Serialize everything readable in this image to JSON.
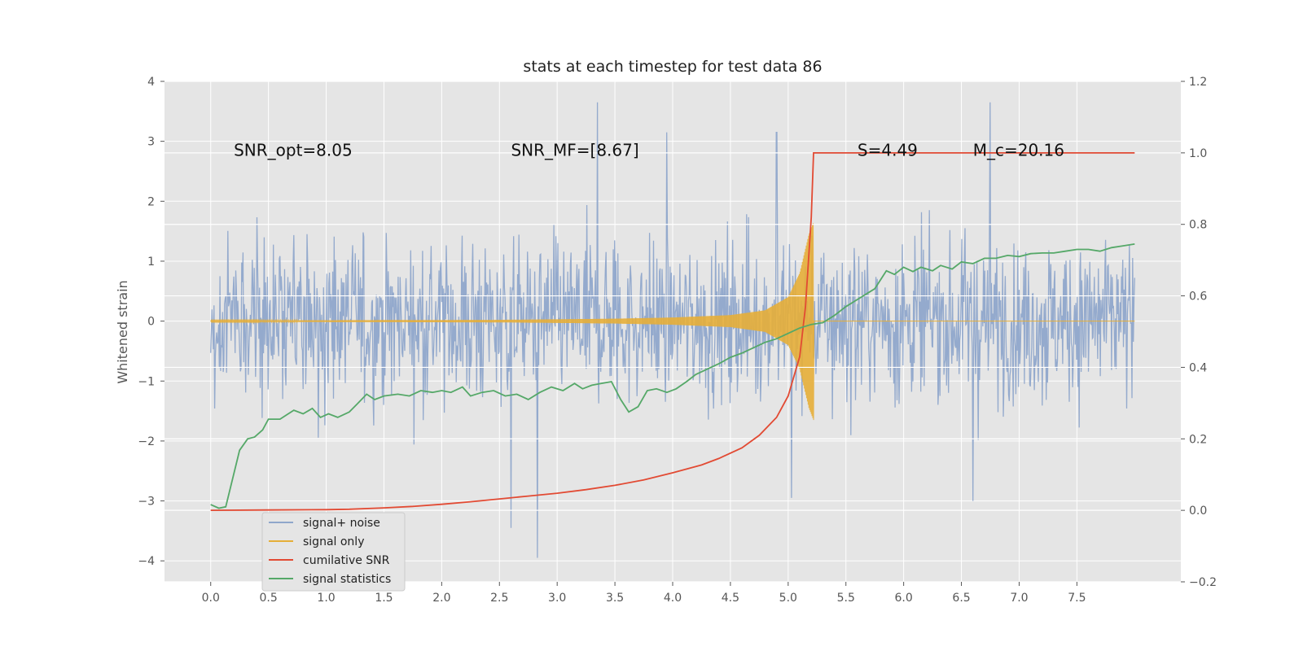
{
  "chart_data": {
    "type": "line",
    "title": "stats at each timestep for test data 86",
    "ylabel": "Whitened strain",
    "xlabel": "",
    "ylabel_right": "",
    "xlim": [
      -0.4,
      8.4
    ],
    "ylim": [
      -4.35,
      4.0
    ],
    "ylim_right": [
      -0.2,
      1.2
    ],
    "x_ticks": [
      "0.0",
      "0.5",
      "1.0",
      "1.5",
      "2.0",
      "2.5",
      "3.0",
      "3.5",
      "4.0",
      "4.5",
      "5.0",
      "5.5",
      "6.0",
      "6.5",
      "7.0",
      "7.5"
    ],
    "y_ticks": [
      "4",
      "3",
      "2",
      "1",
      "0",
      "−1",
      "−2",
      "−3",
      "−4"
    ],
    "y_ticks_right": [
      "1.2",
      "1.0",
      "0.8",
      "0.6",
      "0.4",
      "0.2",
      "0.0",
      "−0.2"
    ],
    "grid": true,
    "legend_position": "bottom-left",
    "annotations": [
      {
        "id": "snr-opt",
        "text": "SNR_opt=8.05",
        "x": 0.2,
        "y": 2.85
      },
      {
        "id": "snr-mf",
        "text": "SNR_MF=[8.67]",
        "x": 2.6,
        "y": 2.85
      },
      {
        "id": "s-stat",
        "text": "S=4.49",
        "x": 5.6,
        "y": 2.85
      },
      {
        "id": "mc",
        "text": "M_c=20.16",
        "x": 6.6,
        "y": 2.85
      }
    ],
    "series": [
      {
        "name": "signal+ noise",
        "axis": "left",
        "color": "#8fa6cb",
        "style": "noise",
        "x_range": [
          0.0,
          8.0
        ],
        "envelope": [
          -2.3,
          2.2
        ],
        "notable_spikes": [
          {
            "x": 3.35,
            "y": 3.65
          },
          {
            "x": 6.75,
            "y": 3.65
          },
          {
            "x": 3.95,
            "y": 3.15
          },
          {
            "x": 4.9,
            "y": 3.15
          },
          {
            "x": 2.6,
            "y": -3.45
          },
          {
            "x": 2.83,
            "y": -3.95
          },
          {
            "x": 5.03,
            "y": -2.95
          },
          {
            "x": 6.6,
            "y": -3.0
          }
        ]
      },
      {
        "name": "signal only",
        "axis": "left",
        "color": "#e5ae38",
        "style": "chirp",
        "x_range": [
          0.0,
          8.0
        ],
        "merger_time": 5.22,
        "amplitude_points": [
          [
            0.0,
            0.01
          ],
          [
            2.5,
            0.02
          ],
          [
            3.5,
            0.04
          ],
          [
            4.0,
            0.06
          ],
          [
            4.5,
            0.1
          ],
          [
            4.8,
            0.18
          ],
          [
            5.0,
            0.4
          ],
          [
            5.1,
            0.8
          ],
          [
            5.18,
            1.45
          ],
          [
            5.22,
            1.65
          ]
        ]
      },
      {
        "name": "cumilative SNR",
        "axis": "right",
        "color": "#e24a33",
        "style": "line",
        "points": [
          [
            0.0,
            0.0
          ],
          [
            0.5,
            0.001
          ],
          [
            1.0,
            0.002
          ],
          [
            1.2,
            0.003
          ],
          [
            1.5,
            0.007
          ],
          [
            1.75,
            0.011
          ],
          [
            2.0,
            0.017
          ],
          [
            2.25,
            0.024
          ],
          [
            2.5,
            0.032
          ],
          [
            2.75,
            0.04
          ],
          [
            3.0,
            0.048
          ],
          [
            3.25,
            0.058
          ],
          [
            3.5,
            0.07
          ],
          [
            3.75,
            0.085
          ],
          [
            4.0,
            0.105
          ],
          [
            4.25,
            0.127
          ],
          [
            4.4,
            0.145
          ],
          [
            4.6,
            0.175
          ],
          [
            4.75,
            0.21
          ],
          [
            4.9,
            0.26
          ],
          [
            5.0,
            0.32
          ],
          [
            5.1,
            0.43
          ],
          [
            5.15,
            0.57
          ],
          [
            5.2,
            0.82
          ],
          [
            5.22,
            1.0
          ],
          [
            8.0,
            1.0
          ]
        ]
      },
      {
        "name": "signal statistics",
        "axis": "right",
        "color": "#55a868",
        "style": "line",
        "points": [
          [
            0.0,
            0.016
          ],
          [
            0.07,
            0.006
          ],
          [
            0.13,
            0.01
          ],
          [
            0.25,
            0.168
          ],
          [
            0.32,
            0.2
          ],
          [
            0.38,
            0.205
          ],
          [
            0.45,
            0.225
          ],
          [
            0.5,
            0.255
          ],
          [
            0.6,
            0.255
          ],
          [
            0.72,
            0.28
          ],
          [
            0.8,
            0.27
          ],
          [
            0.88,
            0.285
          ],
          [
            0.95,
            0.26
          ],
          [
            1.02,
            0.27
          ],
          [
            1.1,
            0.26
          ],
          [
            1.2,
            0.275
          ],
          [
            1.27,
            0.298
          ],
          [
            1.35,
            0.325
          ],
          [
            1.42,
            0.31
          ],
          [
            1.5,
            0.32
          ],
          [
            1.62,
            0.325
          ],
          [
            1.72,
            0.32
          ],
          [
            1.82,
            0.335
          ],
          [
            1.92,
            0.33
          ],
          [
            2.0,
            0.335
          ],
          [
            2.08,
            0.33
          ],
          [
            2.18,
            0.345
          ],
          [
            2.25,
            0.32
          ],
          [
            2.35,
            0.33
          ],
          [
            2.45,
            0.335
          ],
          [
            2.55,
            0.32
          ],
          [
            2.65,
            0.325
          ],
          [
            2.75,
            0.31
          ],
          [
            2.85,
            0.33
          ],
          [
            2.95,
            0.345
          ],
          [
            3.05,
            0.335
          ],
          [
            3.15,
            0.355
          ],
          [
            3.22,
            0.34
          ],
          [
            3.3,
            0.35
          ],
          [
            3.38,
            0.355
          ],
          [
            3.47,
            0.36
          ],
          [
            3.55,
            0.31
          ],
          [
            3.62,
            0.275
          ],
          [
            3.7,
            0.29
          ],
          [
            3.78,
            0.335
          ],
          [
            3.86,
            0.34
          ],
          [
            3.95,
            0.33
          ],
          [
            4.03,
            0.34
          ],
          [
            4.12,
            0.36
          ],
          [
            4.2,
            0.38
          ],
          [
            4.3,
            0.395
          ],
          [
            4.4,
            0.41
          ],
          [
            4.5,
            0.428
          ],
          [
            4.6,
            0.44
          ],
          [
            4.7,
            0.455
          ],
          [
            4.8,
            0.47
          ],
          [
            4.9,
            0.48
          ],
          [
            5.0,
            0.495
          ],
          [
            5.1,
            0.51
          ],
          [
            5.2,
            0.52
          ],
          [
            5.3,
            0.525
          ],
          [
            5.4,
            0.545
          ],
          [
            5.5,
            0.57
          ],
          [
            5.6,
            0.59
          ],
          [
            5.7,
            0.61
          ],
          [
            5.75,
            0.62
          ],
          [
            5.85,
            0.67
          ],
          [
            5.92,
            0.66
          ],
          [
            6.0,
            0.68
          ],
          [
            6.08,
            0.668
          ],
          [
            6.15,
            0.68
          ],
          [
            6.25,
            0.67
          ],
          [
            6.32,
            0.685
          ],
          [
            6.42,
            0.675
          ],
          [
            6.5,
            0.695
          ],
          [
            6.6,
            0.69
          ],
          [
            6.7,
            0.705
          ],
          [
            6.8,
            0.705
          ],
          [
            6.9,
            0.713
          ],
          [
            7.0,
            0.71
          ],
          [
            7.1,
            0.718
          ],
          [
            7.2,
            0.72
          ],
          [
            7.3,
            0.72
          ],
          [
            7.4,
            0.725
          ],
          [
            7.5,
            0.73
          ],
          [
            7.6,
            0.73
          ],
          [
            7.7,
            0.725
          ],
          [
            7.8,
            0.735
          ],
          [
            7.9,
            0.74
          ],
          [
            8.0,
            0.745
          ]
        ]
      }
    ]
  }
}
